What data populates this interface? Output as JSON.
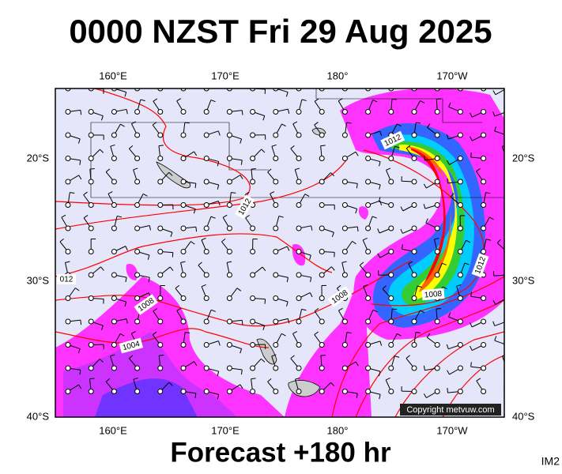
{
  "title": "0000 NZST Fri 29 Aug 2025",
  "footer": "Forecast +180 hr",
  "map_id": "IM2",
  "copyright": "Copyright metvuw.com",
  "top_axis": [
    "160°E",
    "170°E",
    "180°",
    "170°W"
  ],
  "bottom_axis": [
    "160°E",
    "170°E",
    "180°",
    "170°W"
  ],
  "left_axis": [
    "20°S",
    "30°S",
    "40°S"
  ],
  "right_axis": [
    "20°S",
    "30°S",
    "40°S"
  ],
  "contour_labels": [
    "1012",
    "1012",
    "012",
    "1008",
    "1004",
    "1008",
    "1008",
    "1012"
  ]
}
